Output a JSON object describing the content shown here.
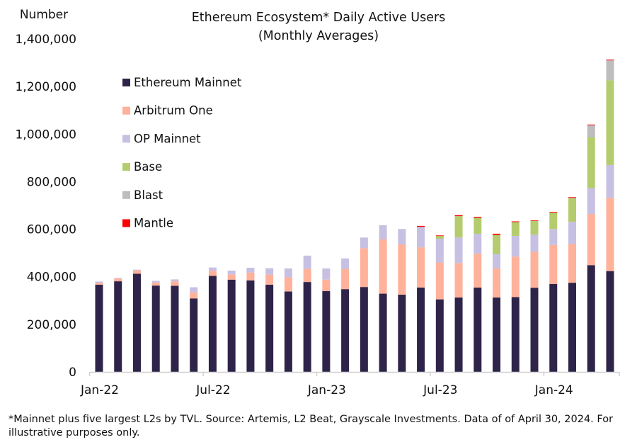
{
  "chart_data": {
    "type": "bar",
    "stacked": true,
    "title": "Ethereum Ecosystem* Daily Active Users",
    "subtitle": "(Monthly Averages)",
    "ylabel": "Number",
    "xlabel": "",
    "ylim": [
      0,
      1400000
    ],
    "yticks": [
      "0",
      "200,000",
      "400,000",
      "600,000",
      "800,000",
      "1,000,000",
      "1,200,000",
      "1,400,000"
    ],
    "ytick_values": [
      0,
      200000,
      400000,
      600000,
      800000,
      1000000,
      1200000,
      1400000
    ],
    "xtick_labels": [
      "Jan-22",
      "Jul-22",
      "Jan-23",
      "Jul-23",
      "Jan-24"
    ],
    "xtick_months": [
      0,
      6,
      12,
      18,
      24
    ],
    "grid": false,
    "legend_position": "top-left",
    "categories": [
      "Jan-22",
      "Feb-22",
      "Mar-22",
      "Apr-22",
      "May-22",
      "Jun-22",
      "Jul-22",
      "Aug-22",
      "Sep-22",
      "Oct-22",
      "Nov-22",
      "Dec-22",
      "Jan-23",
      "Feb-23",
      "Mar-23",
      "Apr-23",
      "May-23",
      "Jun-23",
      "Jul-23",
      "Aug-23",
      "Sep-23",
      "Oct-23",
      "Nov-23",
      "Dec-23",
      "Jan-24",
      "Feb-24",
      "Mar-24",
      "Apr-24"
    ],
    "series": [
      {
        "name": "Ethereum Mainnet",
        "color": "#2e2449",
        "values": [
          367000,
          381000,
          413000,
          363000,
          362000,
          309000,
          404000,
          388000,
          385000,
          367000,
          338000,
          378000,
          340000,
          348000,
          357000,
          329000,
          325000,
          355000,
          305000,
          313000,
          355000,
          313000,
          315000,
          354000,
          370000,
          375000,
          449000,
          424000
        ]
      },
      {
        "name": "Arbitrum One",
        "color": "#ffb19a",
        "values": [
          8000,
          12000,
          14000,
          13000,
          19000,
          25000,
          21000,
          22000,
          33000,
          42000,
          60000,
          55000,
          48000,
          85000,
          163000,
          228000,
          211000,
          169000,
          155000,
          145000,
          143000,
          122000,
          170000,
          151000,
          164000,
          163000,
          215000,
          308000
        ]
      },
      {
        "name": "OP Mainnet",
        "color": "#c7c0e3",
        "values": [
          5000,
          2000,
          3000,
          7000,
          8000,
          22000,
          14000,
          16000,
          20000,
          27000,
          37000,
          56000,
          47000,
          44000,
          45000,
          60000,
          65000,
          86000,
          100000,
          107000,
          83000,
          61000,
          87000,
          72000,
          67000,
          93000,
          109000,
          138000
        ]
      },
      {
        "name": "Base",
        "color": "#b5cc6e",
        "values": [
          0,
          0,
          0,
          0,
          0,
          0,
          0,
          0,
          0,
          0,
          0,
          0,
          0,
          0,
          0,
          0,
          0,
          0,
          12000,
          90000,
          67000,
          80000,
          58000,
          58000,
          69000,
          99000,
          213000,
          356000
        ]
      },
      {
        "name": "Blast",
        "color": "#bdbdbd",
        "values": [
          0,
          0,
          0,
          0,
          0,
          0,
          0,
          0,
          0,
          0,
          0,
          0,
          0,
          0,
          0,
          0,
          0,
          0,
          0,
          0,
          0,
          0,
          0,
          0,
          0,
          2000,
          51000,
          84000
        ]
      },
      {
        "name": "Mantle",
        "color": "#ff0000",
        "values": [
          0,
          0,
          0,
          0,
          0,
          0,
          0,
          0,
          0,
          0,
          0,
          0,
          0,
          0,
          0,
          0,
          0,
          4000,
          2000,
          4000,
          4000,
          5000,
          3000,
          2000,
          3000,
          3000,
          3000,
          3000
        ]
      }
    ]
  },
  "footnote": "*Mainnet plus five largest L2s by TVL. Source: Artemis, L2 Beat, Grayscale Investments. Data of of April 30, 2024. For illustrative purposes only."
}
